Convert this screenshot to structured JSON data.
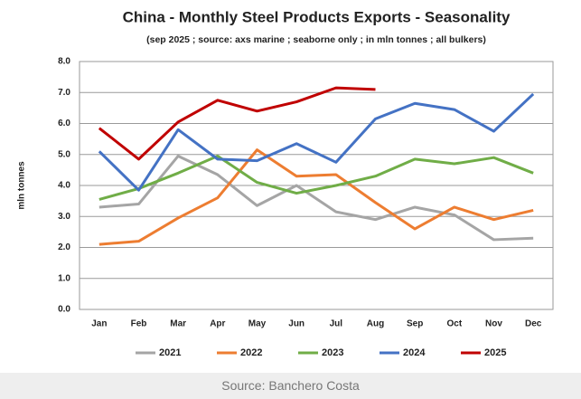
{
  "chart_data": {
    "type": "line",
    "title": "China - Monthly Steel Products Exports - Seasonality",
    "subtitle": "(sep 2025 ; source: axs marine ; seaborne only ; in mln tonnes ; all bulkers)",
    "y_label": "mln tonnes",
    "categories": [
      "Jan",
      "Feb",
      "Mar",
      "Apr",
      "May",
      "Jun",
      "Jul",
      "Aug",
      "Sep",
      "Oct",
      "Nov",
      "Dec"
    ],
    "series": [
      {
        "name": "2021",
        "color": "#a5a5a5",
        "values": [
          3.3,
          3.4,
          4.95,
          4.35,
          3.35,
          4.0,
          3.15,
          2.9,
          3.3,
          3.05,
          2.25,
          2.3
        ]
      },
      {
        "name": "2022",
        "color": "#ed7d31",
        "values": [
          2.1,
          2.2,
          2.95,
          3.6,
          5.15,
          4.3,
          4.35,
          3.45,
          2.6,
          3.3,
          2.9,
          3.2
        ]
      },
      {
        "name": "2023",
        "color": "#70ad47",
        "values": [
          3.55,
          3.9,
          4.4,
          4.95,
          4.1,
          3.75,
          4.0,
          4.3,
          4.85,
          4.7,
          4.9,
          4.4
        ]
      },
      {
        "name": "2024",
        "color": "#4472c4",
        "values": [
          5.1,
          3.85,
          5.8,
          4.85,
          4.8,
          5.35,
          4.75,
          6.15,
          6.65,
          6.45,
          5.75,
          6.95
        ]
      },
      {
        "name": "2025",
        "color": "#c00000",
        "values": [
          5.85,
          4.85,
          6.05,
          6.75,
          6.4,
          6.7,
          7.15,
          7.1,
          null,
          null,
          null,
          null
        ]
      }
    ],
    "ylim": [
      0,
      8
    ],
    "yticks": [
      {
        "value": 0,
        "label": "0.0"
      },
      {
        "value": 1,
        "label": "1.0"
      },
      {
        "value": 2,
        "label": "2.0"
      },
      {
        "value": 3,
        "label": "3.0"
      },
      {
        "value": 4,
        "label": "4.0"
      },
      {
        "value": 5,
        "label": "5.0"
      },
      {
        "value": 6,
        "label": "6.0"
      },
      {
        "value": 7,
        "label": "7.0"
      },
      {
        "value": 8,
        "label": "8.0"
      }
    ],
    "grid": true,
    "legend": "bottom"
  },
  "caption": "Source: Banchero Costa"
}
